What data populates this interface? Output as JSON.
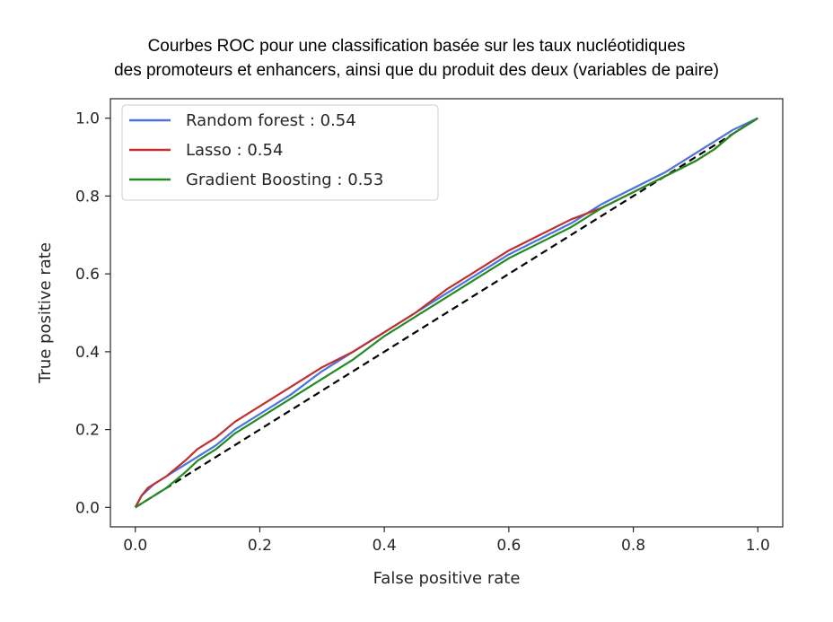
{
  "chart_data": {
    "type": "line",
    "title_lines": [
      "Courbes ROC pour une classification basée sur les taux nucléotidiques",
      "des promoteurs et enhancers, ainsi que du produit des deux (variables de paire)"
    ],
    "xlabel": "False positive rate",
    "ylabel": "True positive rate",
    "xlim": [
      -0.04,
      1.04
    ],
    "ylim": [
      -0.05,
      1.05
    ],
    "xticks": [
      "0.0",
      "0.2",
      "0.4",
      "0.6",
      "0.8",
      "1.0"
    ],
    "yticks": [
      "0.0",
      "0.2",
      "0.4",
      "0.6",
      "0.8",
      "1.0"
    ],
    "grid": false,
    "legend_position": "upper-left",
    "series": [
      {
        "name": "Random forest : 0.54",
        "color": "#4c72e0",
        "x": [
          0.0,
          0.01,
          0.03,
          0.05,
          0.08,
          0.1,
          0.13,
          0.16,
          0.2,
          0.25,
          0.3,
          0.35,
          0.4,
          0.45,
          0.5,
          0.55,
          0.6,
          0.65,
          0.7,
          0.75,
          0.8,
          0.85,
          0.88,
          0.92,
          0.96,
          1.0
        ],
        "y": [
          0.0,
          0.03,
          0.06,
          0.08,
          0.11,
          0.13,
          0.16,
          0.2,
          0.24,
          0.29,
          0.35,
          0.4,
          0.45,
          0.5,
          0.55,
          0.6,
          0.65,
          0.69,
          0.73,
          0.78,
          0.82,
          0.86,
          0.89,
          0.93,
          0.97,
          1.0
        ]
      },
      {
        "name": "Lasso : 0.54",
        "color": "#c03030",
        "x": [
          0.0,
          0.01,
          0.02,
          0.05,
          0.08,
          0.1,
          0.13,
          0.16,
          0.2,
          0.25,
          0.3,
          0.35,
          0.4,
          0.45,
          0.5,
          0.55,
          0.6,
          0.65,
          0.7,
          0.75,
          0.8,
          0.85,
          0.9,
          0.93,
          0.96,
          1.0
        ],
        "y": [
          0.0,
          0.03,
          0.05,
          0.08,
          0.12,
          0.15,
          0.18,
          0.22,
          0.26,
          0.31,
          0.36,
          0.4,
          0.45,
          0.5,
          0.56,
          0.61,
          0.66,
          0.7,
          0.74,
          0.77,
          0.81,
          0.85,
          0.89,
          0.92,
          0.96,
          1.0
        ]
      },
      {
        "name": "Gradient Boosting : 0.53",
        "color": "#228b22",
        "x": [
          0.0,
          0.02,
          0.05,
          0.08,
          0.1,
          0.13,
          0.16,
          0.2,
          0.25,
          0.3,
          0.35,
          0.4,
          0.45,
          0.5,
          0.55,
          0.6,
          0.65,
          0.7,
          0.75,
          0.8,
          0.85,
          0.9,
          0.93,
          0.96,
          1.0
        ],
        "y": [
          0.0,
          0.02,
          0.05,
          0.09,
          0.12,
          0.15,
          0.19,
          0.23,
          0.28,
          0.33,
          0.38,
          0.44,
          0.49,
          0.54,
          0.59,
          0.64,
          0.68,
          0.72,
          0.77,
          0.81,
          0.85,
          0.89,
          0.92,
          0.96,
          1.0
        ]
      }
    ],
    "reference_line": {
      "color": "#000000",
      "style": "dashed",
      "x": [
        0.0,
        1.0
      ],
      "y": [
        0.0,
        1.0
      ]
    }
  }
}
